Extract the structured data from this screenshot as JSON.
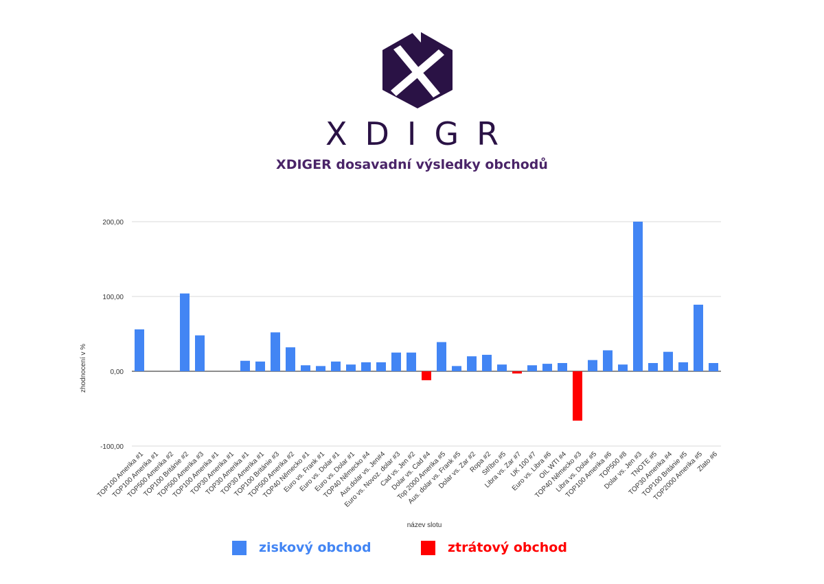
{
  "brand": {
    "name": "XDIGR"
  },
  "title": "XDIGER dosavadní výsledky obchodů",
  "colors": {
    "profit": "#4285f4",
    "loss": "#ff0000",
    "brand": "#2a1245",
    "title": "#4a2468",
    "grid": "#d9d9d9",
    "axis": "#666666"
  },
  "legend": {
    "profit_label": "ziskový obchod",
    "loss_label": "ztrátový obchod"
  },
  "chart_data": {
    "type": "bar",
    "xlabel": "název slotu",
    "ylabel": "zhodnocení v %",
    "ylim": [
      -100,
      200
    ],
    "yticks": [
      "200,00",
      "100,00",
      "0,00",
      "-100,00"
    ],
    "ytick_values": [
      200,
      100,
      0,
      -100
    ],
    "grid": true,
    "categories": [
      "TOP100 Amerika #1",
      "TOP100 Amerika #1",
      "TOP500 Amerika #2",
      "TOP100 Británie #2",
      "TOP500 Amerika #3",
      "TOP100 Amerika #1",
      "TOP30 Amerika #1",
      "TOP30 Amerika #1",
      "TOP30 Amerika #1",
      "TOP100 Británie #3",
      "TOP500 Amerika #2",
      "TOP40 Německo #1",
      "Euro vs. Frank #1",
      "Euro vs. Dolar #1",
      "Euro vs. Dolar #1",
      "TOP40 Německo #4",
      "Aus.dolar vs. Jen#4",
      "Euro vs. Novoz. dolar #3",
      "Cad vs. Jen #2",
      "Dolar vs. Cad #4",
      "Top 2000 Amerika #5",
      "Aus. dolar vs. Frank #5",
      "Dolar vs. Zar #2",
      "Ropa #2",
      "Stříbro #5",
      "Libra vs. Zar #7",
      "UK 100 #7",
      "Euro vs. Libra #6",
      "OIL WTI #4",
      "TOP40 Německo #3",
      "Libra vs. Dolar #5",
      "TOP100 Amerika #6",
      "TOP500 #8",
      "Dolar vs. Jen #3",
      "TNOTE #5",
      "TOP30 Amerika #4",
      "TOP100 Británie #5",
      "TOP2000 Amerika #5",
      "Zlato #6"
    ],
    "values": [
      56,
      0,
      0,
      104,
      48,
      0,
      0,
      14,
      13,
      52,
      32,
      8,
      7,
      13,
      9,
      12,
      12,
      25,
      25,
      -12,
      39,
      7,
      20,
      22,
      9,
      -3,
      8,
      10,
      11,
      -66,
      15,
      28,
      9,
      200,
      11,
      26,
      12,
      89,
      11
    ]
  }
}
